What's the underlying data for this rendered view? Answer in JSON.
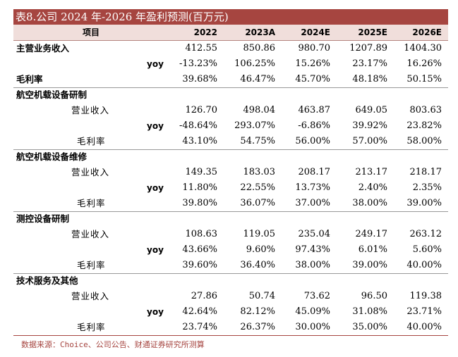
{
  "top_fragment": "",
  "title": "表8.公司 2024 年-2026 年盈利预测(百万元)",
  "header": {
    "item": "项目",
    "years": [
      "2022",
      "2023A",
      "2024E",
      "2025E",
      "2026E"
    ]
  },
  "rows": [
    {
      "type": "main",
      "label": "主营业务收入",
      "values": [
        "412.55",
        "850.86",
        "980.70",
        "1207.89",
        "1404.30"
      ]
    },
    {
      "type": "yoy",
      "label": "yoy",
      "values": [
        "-13.23%",
        "106.25%",
        "15.26%",
        "23.17%",
        "16.26%"
      ]
    },
    {
      "type": "main",
      "label": "毛利率",
      "values": [
        "39.68%",
        "46.47%",
        "45.70%",
        "48.18%",
        "50.15%"
      ]
    },
    {
      "type": "section",
      "label": "航空机载设备研制",
      "values": [
        "",
        "",
        "",
        "",
        ""
      ]
    },
    {
      "type": "sub",
      "label": "营业收入",
      "values": [
        "126.70",
        "498.04",
        "463.87",
        "649.05",
        "803.63"
      ]
    },
    {
      "type": "yoy",
      "label": "yoy",
      "values": [
        "-48.64%",
        "293.07%",
        "-6.86%",
        "39.92%",
        "23.82%"
      ]
    },
    {
      "type": "gm",
      "label": "毛利率",
      "values": [
        "43.10%",
        "54.75%",
        "56.00%",
        "57.00%",
        "58.00%"
      ]
    },
    {
      "type": "section",
      "label": "航空机载设备维修",
      "values": [
        "",
        "",
        "",
        "",
        ""
      ]
    },
    {
      "type": "sub",
      "label": "营业收入",
      "values": [
        "149.35",
        "183.03",
        "208.17",
        "213.17",
        "218.17"
      ]
    },
    {
      "type": "yoy",
      "label": "yoy",
      "values": [
        "11.80%",
        "22.55%",
        "13.73%",
        "2.40%",
        "2.35%"
      ]
    },
    {
      "type": "gm",
      "label": "毛利率",
      "values": [
        "39.80%",
        "36.07%",
        "37.00%",
        "38.00%",
        "39.00%"
      ]
    },
    {
      "type": "section",
      "label": "测控设备研制",
      "values": [
        "",
        "",
        "",
        "",
        ""
      ]
    },
    {
      "type": "sub",
      "label": "营业收入",
      "values": [
        "108.63",
        "119.05",
        "235.04",
        "249.17",
        "263.12"
      ]
    },
    {
      "type": "yoy",
      "label": "yoy",
      "values": [
        "43.66%",
        "9.60%",
        "97.43%",
        "6.01%",
        "5.60%"
      ]
    },
    {
      "type": "gm",
      "label": "毛利率",
      "values": [
        "39.60%",
        "36.40%",
        "38.00%",
        "39.00%",
        "40.00%"
      ]
    },
    {
      "type": "section",
      "label": "技术服务及其他",
      "values": [
        "",
        "",
        "",
        "",
        ""
      ]
    },
    {
      "type": "sub",
      "label": "营业收入",
      "values": [
        "27.86",
        "50.74",
        "73.62",
        "96.50",
        "119.38"
      ]
    },
    {
      "type": "yoy",
      "label": "yoy",
      "values": [
        "42.64%",
        "82.12%",
        "45.09%",
        "31.08%",
        "23.71%"
      ]
    },
    {
      "type": "gm",
      "label": "毛利率",
      "values": [
        "23.74%",
        "26.37%",
        "30.00%",
        "35.00%",
        "40.00%"
      ]
    }
  ],
  "source": "数据来源：Choice、公司公告、财通证券研究所测算",
  "bottom_fragment": "",
  "colors": {
    "accent": "#a64540",
    "header_bg": "#f0dedb"
  }
}
